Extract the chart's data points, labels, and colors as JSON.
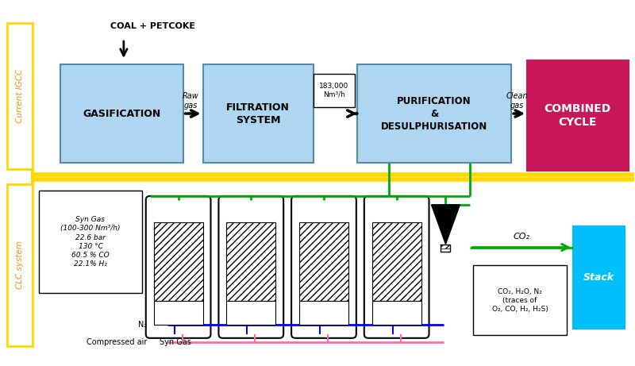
{
  "bg_color": "#ffffff",
  "igcc_label": "Current IGCC",
  "igcc_color": "#FFD700",
  "clc_label": "CLC system",
  "clc_color": "#FFD700",
  "coal_label": "COAL + PETCOKE",
  "gasif_label": "GASIFICATION",
  "gasif_color": "#AED6F1",
  "filtration_label": "FILTRATION\nSYSTEM",
  "filtration_color": "#AED6F1",
  "purif_label": "PURIFICATION\n&\nDESULPHURISATION",
  "purif_color": "#AED6F1",
  "combined_label": "COMBINED\nCYCLE",
  "combined_color": "#C8185A",
  "stack_label": "Stack",
  "stack_color": "#00BFFF",
  "raw_gas_label": "Raw\ngas",
  "flow_label": "183,000\nNm³/h",
  "clean_gas_label": "Clean\ngas",
  "syngas_info": "Syn Gas\n(100-300 Nm³/h)\n22.6 bar\n130 °C\n60.5 % CO\n22.1% H₂",
  "co2_info": "CO₂, H₂O, N₂\n(traces of\nO₂, CO, H₂, H₂S)",
  "syngas_bottom_label": "Syn Gas",
  "n2_label": "N₂",
  "air_label": "Compressed air",
  "co2_label": "CO₂",
  "green_color": "#00AA00",
  "blue_color": "#0000FF",
  "pink_color": "#FF69B4",
  "yellow_color": "#FFD700",
  "black_color": "#000000"
}
